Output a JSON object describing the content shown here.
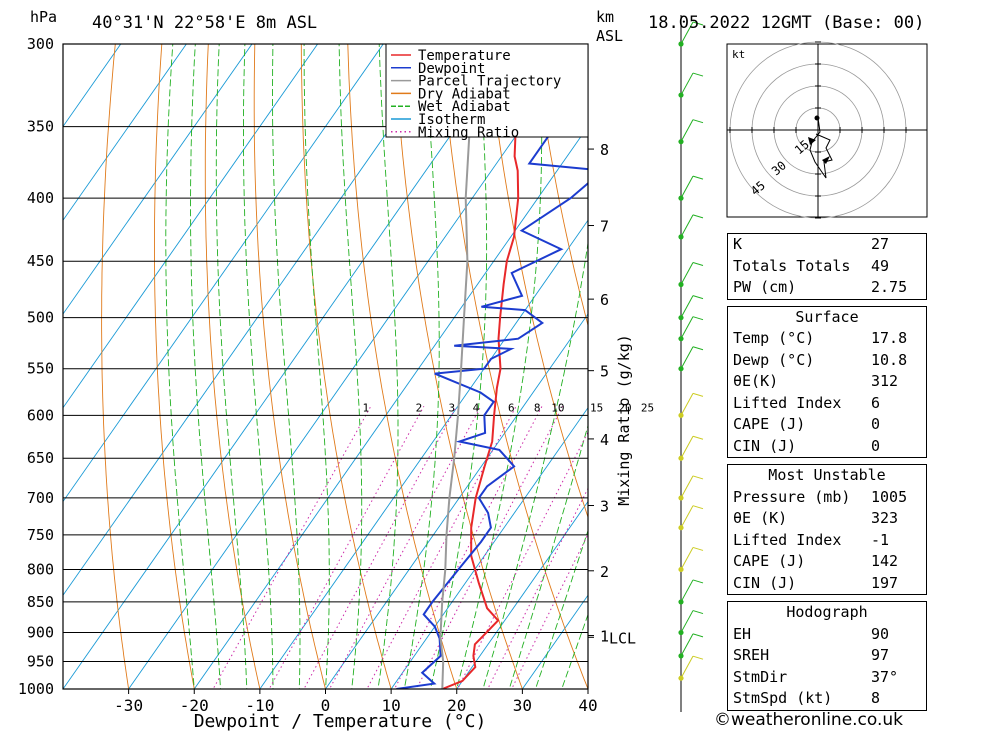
{
  "header": {
    "location": "40°31'N 22°58'E 8m ASL",
    "datetime": "18.05.2022 12GMT (Base: 00)",
    "left_unit": "hPa",
    "right_unit_top": "km",
    "right_unit_bottom": "ASL"
  },
  "chart_data": {
    "type": "line",
    "title": "40°31'N 22°58'E 8m ASL",
    "xlabel": "Dewpoint / Temperature (°C)",
    "ylabel": "hPa",
    "y2label": "Mixing Ratio (g/kg)",
    "xlim": [
      -40,
      40
    ],
    "ylim": [
      1000,
      300
    ],
    "log_scale_y": true,
    "x_ticks": [
      -30,
      -20,
      -10,
      0,
      10,
      20,
      30,
      40
    ],
    "pressure_levels": [
      300,
      350,
      400,
      450,
      500,
      550,
      600,
      650,
      700,
      750,
      800,
      850,
      900,
      950,
      1000
    ],
    "km_ticks": [
      {
        "km": "1",
        "p": 905
      },
      {
        "km": "2",
        "p": 802
      },
      {
        "km": "3",
        "p": 710
      },
      {
        "km": "4",
        "p": 627
      },
      {
        "km": "5",
        "p": 552
      },
      {
        "km": "6",
        "p": 483
      },
      {
        "km": "7",
        "p": 421
      },
      {
        "km": "8",
        "p": 365
      }
    ],
    "lcl_label": "LCL",
    "lcl_pressure": 908,
    "mixing_ratio_labels": [
      "1",
      "2",
      "3",
      "4",
      "6",
      "8",
      "10",
      "15",
      "20",
      "25"
    ],
    "legend": {
      "placement": "top-right",
      "entries": [
        {
          "name": "Temperature",
          "color": "#e8282a"
        },
        {
          "name": "Dewpoint",
          "color": "#1c3ccf"
        },
        {
          "name": "Parcel Trajectory",
          "color": "#9a9a9a"
        },
        {
          "name": "Dry Adiabat",
          "color": "#e07a1a"
        },
        {
          "name": "Wet Adiabat",
          "color": "#22b022"
        },
        {
          "name": "Isotherm",
          "color": "#1a9ad6"
        },
        {
          "name": "Mixing Ratio",
          "color": "#cc2aa8"
        }
      ]
    },
    "series": [
      {
        "name": "Temperature",
        "color": "#e8282a",
        "points": [
          [
            1000,
            17.8
          ],
          [
            985,
            20
          ],
          [
            960,
            20.5
          ],
          [
            940,
            19
          ],
          [
            920,
            18
          ],
          [
            900,
            18.5
          ],
          [
            880,
            19
          ],
          [
            860,
            16
          ],
          [
            820,
            12
          ],
          [
            780,
            8
          ],
          [
            740,
            5
          ],
          [
            700,
            2.5
          ],
          [
            660,
            0.5
          ],
          [
            630,
            -1
          ],
          [
            600,
            -3.5
          ],
          [
            570,
            -6
          ],
          [
            550,
            -7.5
          ],
          [
            520,
            -11
          ],
          [
            500,
            -13
          ],
          [
            470,
            -16
          ],
          [
            450,
            -18
          ],
          [
            430,
            -19.5
          ],
          [
            400,
            -23
          ],
          [
            380,
            -26
          ],
          [
            370,
            -28
          ],
          [
            350,
            -31
          ],
          [
            330,
            -34
          ],
          [
            300,
            -40
          ]
        ]
      },
      {
        "name": "Dewpoint",
        "color": "#1c3ccf",
        "points": [
          [
            1000,
            10.8
          ],
          [
            990,
            16
          ],
          [
            970,
            13
          ],
          [
            940,
            14
          ],
          [
            910,
            12
          ],
          [
            890,
            10
          ],
          [
            870,
            7
          ],
          [
            850,
            7
          ],
          [
            800,
            7.5
          ],
          [
            760,
            8
          ],
          [
            740,
            8
          ],
          [
            720,
            6
          ],
          [
            700,
            3
          ],
          [
            685,
            3
          ],
          [
            660,
            5
          ],
          [
            640,
            1
          ],
          [
            630,
            -6
          ],
          [
            620,
            -3
          ],
          [
            600,
            -5
          ],
          [
            585,
            -5
          ],
          [
            575,
            -8
          ],
          [
            555,
            -17
          ],
          [
            550,
            -10
          ],
          [
            540,
            -10
          ],
          [
            530,
            -8
          ],
          [
            527,
            -17
          ],
          [
            520,
            -8
          ],
          [
            505,
            -6
          ],
          [
            493,
            -10
          ],
          [
            490,
            -17
          ],
          [
            480,
            -12
          ],
          [
            460,
            -16
          ],
          [
            440,
            -11
          ],
          [
            425,
            -19
          ],
          [
            400,
            -15
          ],
          [
            380,
            -13
          ],
          [
            375,
            -25
          ],
          [
            350,
            -25
          ],
          [
            340,
            -18
          ],
          [
            337,
            -26
          ],
          [
            325,
            -21
          ],
          [
            315,
            -22
          ],
          [
            300,
            -18
          ]
        ]
      },
      {
        "name": "Parcel Trajectory",
        "color": "#9a9a9a",
        "points": [
          [
            1000,
            17.8
          ],
          [
            950,
            15
          ],
          [
            908,
            12
          ],
          [
            850,
            8.5
          ],
          [
            800,
            5.5
          ],
          [
            750,
            2
          ],
          [
            700,
            -1.5
          ],
          [
            650,
            -5
          ],
          [
            600,
            -9
          ],
          [
            550,
            -13.5
          ],
          [
            500,
            -18.5
          ],
          [
            450,
            -24
          ],
          [
            400,
            -31
          ],
          [
            350,
            -38
          ],
          [
            300,
            -46
          ]
        ]
      }
    ]
  },
  "hodograph": {
    "unit": "kt",
    "ring_labels": [
      "15",
      "30",
      "45"
    ]
  },
  "stats": {
    "indices": [
      {
        "label": "K",
        "value": "27"
      },
      {
        "label": "Totals Totals",
        "value": "49"
      },
      {
        "label": "PW (cm)",
        "value": "2.75"
      }
    ],
    "surface_title": "Surface",
    "surface": [
      {
        "label": "Temp (°C)",
        "value": "17.8"
      },
      {
        "label": "Dewp (°C)",
        "value": "10.8"
      },
      {
        "label": "θE(K)",
        "value": "312"
      },
      {
        "label": "Lifted Index",
        "value": "6"
      },
      {
        "label": "CAPE (J)",
        "value": "0"
      },
      {
        "label": "CIN (J)",
        "value": "0"
      }
    ],
    "unstable_title": "Most Unstable",
    "unstable": [
      {
        "label": "Pressure (mb)",
        "value": "1005"
      },
      {
        "label": "θE (K)",
        "value": "323"
      },
      {
        "label": "Lifted Index",
        "value": "-1"
      },
      {
        "label": "CAPE (J)",
        "value": "142"
      },
      {
        "label": "CIN (J)",
        "value": "197"
      }
    ],
    "hodo_title": "Hodograph",
    "hodo": [
      {
        "label": "EH",
        "value": "90"
      },
      {
        "label": "SREH",
        "value": "97"
      },
      {
        "label": "StmDir",
        "value": "37°"
      },
      {
        "label": "StmSpd (kt)",
        "value": "8"
      }
    ]
  },
  "credit": "©weatheronline.co.uk"
}
